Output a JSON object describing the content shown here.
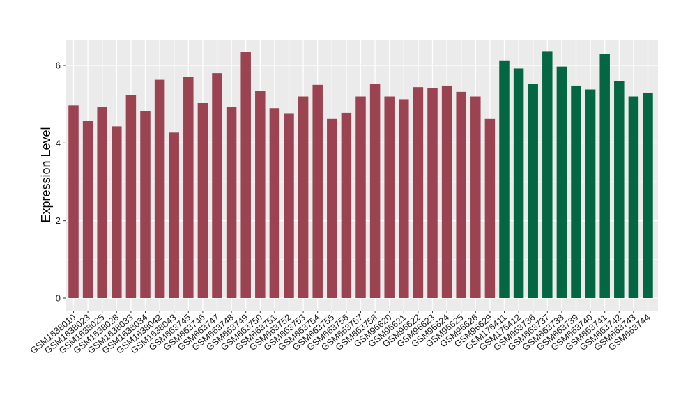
{
  "chart_data": {
    "type": "bar",
    "ylabel": "Expression Level",
    "xlabel": "",
    "ylim": [
      0,
      6.65
    ],
    "yticks": [
      0,
      2,
      4,
      6
    ],
    "grid": true,
    "legend": "none",
    "colors": {
      "group_1": "#9b4351",
      "group_2": "#046744",
      "panel_bg": "#ebebeb",
      "grid": "#ffffff"
    },
    "categories": [
      "GSM1638010",
      "GSM1638023",
      "GSM1638025",
      "GSM1638028",
      "GSM1638033",
      "GSM1638034",
      "GSM1638042",
      "GSM1638043",
      "GSM663745",
      "GSM663746",
      "GSM663747",
      "GSM663748",
      "GSM663749",
      "GSM663750",
      "GSM663751",
      "GSM663752",
      "GSM663753",
      "GSM663754",
      "GSM663755",
      "GSM663756",
      "GSM663757",
      "GSM663758",
      "GSM96620",
      "GSM96621",
      "GSM96622",
      "GSM96623",
      "GSM96624",
      "GSM96625",
      "GSM96626",
      "GSM96629",
      "GSM176411",
      "GSM176412",
      "GSM663736",
      "GSM663737",
      "GSM663738",
      "GSM663739",
      "GSM663740",
      "GSM663741",
      "GSM663742",
      "GSM663743",
      "GSM663744"
    ],
    "values": [
      4.97,
      4.58,
      4.93,
      4.43,
      5.23,
      4.83,
      5.63,
      4.27,
      5.7,
      5.03,
      5.8,
      4.93,
      6.35,
      5.35,
      4.9,
      4.77,
      5.2,
      5.5,
      4.62,
      4.78,
      5.2,
      5.52,
      5.2,
      5.13,
      5.44,
      5.42,
      5.48,
      5.32,
      5.2,
      4.62,
      6.13,
      5.92,
      5.52,
      6.37,
      5.97,
      5.48,
      5.38,
      6.3,
      5.6,
      5.2,
      5.3
    ],
    "groups": [
      1,
      1,
      1,
      1,
      1,
      1,
      1,
      1,
      1,
      1,
      1,
      1,
      1,
      1,
      1,
      1,
      1,
      1,
      1,
      1,
      1,
      1,
      1,
      1,
      1,
      1,
      1,
      1,
      1,
      1,
      2,
      2,
      2,
      2,
      2,
      2,
      2,
      2,
      2,
      2,
      2
    ]
  }
}
